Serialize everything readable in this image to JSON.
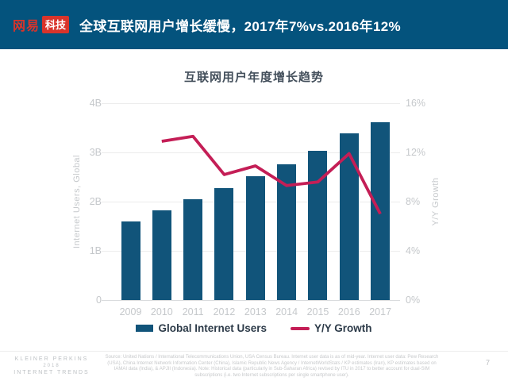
{
  "header": {
    "logo": {
      "brand": "网易",
      "sub": "科技"
    },
    "title": "全球互联网用户增长缓慢，2017年7%vs.2016年12%"
  },
  "chart_data": {
    "type": "bar+line combo",
    "title": "互联网用户年度增长趋势",
    "categories": [
      "2009",
      "2010",
      "2011",
      "2012",
      "2013",
      "2014",
      "2015",
      "2016",
      "2017"
    ],
    "series": [
      {
        "name": "Global Internet Users",
        "type": "bar",
        "axis": "left",
        "unit": "B",
        "color": "#11547a",
        "values": [
          1.6,
          1.83,
          2.05,
          2.28,
          2.51,
          2.76,
          3.03,
          3.39,
          3.62
        ]
      },
      {
        "name": "Y/Y Growth",
        "type": "line",
        "axis": "right",
        "unit": "%",
        "color": "#c41e56",
        "values": [
          null,
          12.9,
          13.3,
          10.2,
          10.9,
          9.3,
          9.6,
          11.9,
          7.0
        ]
      }
    ],
    "left_axis": {
      "title": "Internet Users, Global",
      "min": 0,
      "max": 4,
      "ticks": [
        "4B",
        "3B",
        "2B",
        "1B",
        "0"
      ]
    },
    "right_axis": {
      "title": "Y/Y Growth",
      "min": 0,
      "max": 16,
      "ticks": [
        "16%",
        "12%",
        "8%",
        "4%",
        "0%"
      ]
    },
    "grid": true,
    "legend_position": "bottom"
  },
  "footer": {
    "brand_lines": [
      "KLEINER PERKINS",
      "2018",
      "INTERNET TRENDS"
    ],
    "source_text": "Source: United Nations / International Telecommunications Union, USA Census Bureau. Internet user data is as of mid-year. Internet user data: Pew Research (USA), China Internet Network Information Center (China), Islamic Republic News Agency / InternetWorldStats / KP estimates (Iran), KP estimates based on IAMAI data (India), & APJII (Indonesia). Note: Historical data (particularly in Sub-Saharan Africa) revised by ITU in 2017 to better account for dual-SIM subscriptions (i.e. two Internet subscriptions per single smartphone user).",
    "page_number": "7"
  },
  "colors": {
    "header_bg": "#04537d",
    "logo_red": "#d9342b",
    "bar_blue": "#11547a",
    "line_red": "#c41e56",
    "axis_gray": "#c5c8cb"
  }
}
